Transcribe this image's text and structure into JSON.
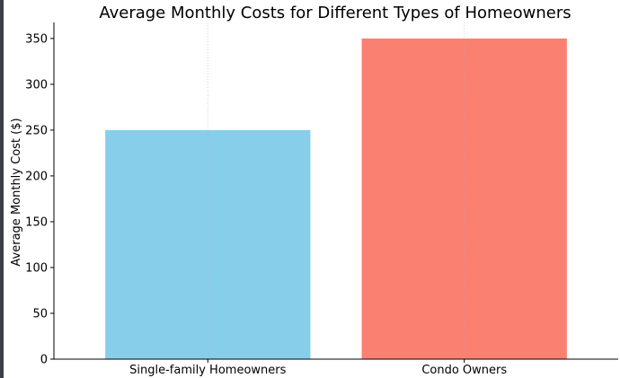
{
  "chart_data": {
    "type": "bar",
    "title": "Average Monthly Costs for Different Types of Homeowners",
    "xlabel": "",
    "ylabel": "Average Monthly Cost ($)",
    "categories": [
      "Single-family Homeowners",
      "Condo Owners"
    ],
    "values": [
      250,
      350
    ],
    "colors": [
      "#87ceeb",
      "#fa8072"
    ],
    "ylim": [
      0,
      367.5
    ],
    "yticks": [
      0,
      50,
      100,
      150,
      200,
      250,
      300,
      350
    ],
    "grid": "x-only, dotted",
    "legend": "none"
  }
}
